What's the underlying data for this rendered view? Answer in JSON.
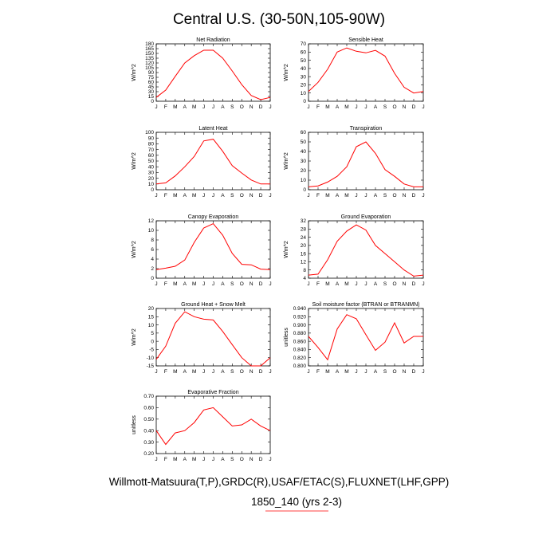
{
  "title": "Central U.S. (30-50N,105-90W)",
  "footer": {
    "line1": "Willmott-Matsuura(T,P),GRDC(R),USAF/ETAC(S),FLUXNET(LHF,GPP)",
    "line2": "1850_140 (yrs 2-3)",
    "line2_color": "#ff0000"
  },
  "line_color": "#ff0000",
  "chart_data": [
    {
      "type": "line",
      "title": "Net Radiation",
      "ylabel": "W/m^2",
      "categories": [
        "J",
        "F",
        "M",
        "A",
        "M",
        "J",
        "J",
        "A",
        "S",
        "O",
        "N",
        "D",
        "J"
      ],
      "ylim": [
        0,
        180
      ],
      "yticks": [
        "0",
        "15",
        "30",
        "45",
        "60",
        "75",
        "90",
        "105",
        "120",
        "135",
        "150",
        "165",
        "180"
      ],
      "values": [
        12,
        35,
        78,
        120,
        143,
        160,
        160,
        135,
        95,
        52,
        18,
        5,
        12
      ]
    },
    {
      "type": "line",
      "title": "Sensible Heat",
      "ylabel": "W/m^2",
      "categories": [
        "J",
        "F",
        "M",
        "A",
        "M",
        "J",
        "J",
        "A",
        "S",
        "O",
        "N",
        "D",
        "J"
      ],
      "ylim": [
        0,
        70
      ],
      "yticks": [
        "0",
        "10",
        "20",
        "30",
        "40",
        "50",
        "60",
        "70"
      ],
      "values": [
        12,
        23,
        39,
        60,
        65,
        61,
        59,
        62,
        55,
        34,
        17,
        10,
        12
      ]
    },
    {
      "type": "line",
      "title": "Latent Heat",
      "ylabel": "W/m^2",
      "categories": [
        "J",
        "F",
        "M",
        "A",
        "M",
        "J",
        "J",
        "A",
        "S",
        "O",
        "N",
        "D",
        "J"
      ],
      "ylim": [
        0,
        100
      ],
      "yticks": [
        "0",
        "10",
        "20",
        "30",
        "40",
        "50",
        "60",
        "70",
        "80",
        "90",
        "100"
      ],
      "values": [
        10,
        12,
        24,
        40,
        58,
        85,
        88,
        67,
        42,
        29,
        17,
        10,
        10
      ]
    },
    {
      "type": "line",
      "title": "Transpiration",
      "ylabel": "W/m^2",
      "categories": [
        "J",
        "F",
        "M",
        "A",
        "M",
        "J",
        "J",
        "A",
        "S",
        "O",
        "N",
        "D",
        "J"
      ],
      "ylim": [
        0,
        60
      ],
      "yticks": [
        "0",
        "10",
        "20",
        "30",
        "40",
        "50",
        "60"
      ],
      "values": [
        3,
        4,
        8,
        14,
        24,
        45,
        50,
        38,
        21,
        14,
        6,
        3,
        3
      ]
    },
    {
      "type": "line",
      "title": "Canopy Evaporation",
      "ylabel": "W/m^2",
      "categories": [
        "J",
        "F",
        "M",
        "A",
        "M",
        "J",
        "J",
        "A",
        "S",
        "O",
        "N",
        "D",
        "J"
      ],
      "ylim": [
        0,
        12
      ],
      "yticks": [
        "0",
        "2",
        "4",
        "6",
        "8",
        "10",
        "12"
      ],
      "values": [
        1.8,
        2.1,
        2.5,
        3.8,
        7.5,
        10.5,
        11.4,
        9.0,
        5.2,
        2.9,
        2.8,
        1.9,
        1.8
      ]
    },
    {
      "type": "line",
      "title": "Ground Evaporation",
      "ylabel": "W/m^2",
      "categories": [
        "J",
        "F",
        "M",
        "A",
        "M",
        "J",
        "J",
        "A",
        "S",
        "O",
        "N",
        "D",
        "J"
      ],
      "ylim": [
        4,
        32
      ],
      "yticks": [
        "4",
        "8",
        "12",
        "16",
        "20",
        "24",
        "28",
        "32"
      ],
      "values": [
        5.5,
        6,
        13,
        22,
        27,
        30,
        27.5,
        20,
        16,
        12,
        8,
        5,
        5.5
      ]
    },
    {
      "type": "line",
      "title": "Ground Heat + Snow Melt",
      "ylabel": "W/m^2",
      "categories": [
        "J",
        "F",
        "M",
        "A",
        "M",
        "J",
        "J",
        "A",
        "S",
        "O",
        "N",
        "D",
        "J"
      ],
      "ylim": [
        -15,
        20
      ],
      "yticks": [
        "-15",
        "-10",
        "-5",
        "0",
        "5",
        "10",
        "15",
        "20"
      ],
      "values": [
        -11,
        -3,
        11,
        18,
        15,
        13.5,
        13,
        6,
        -2,
        -10,
        -15,
        -15,
        -10
      ]
    },
    {
      "type": "line",
      "title": "Soil moisture factor (BTRAN or BTRANMN)",
      "ylabel": "unitless",
      "categories": [
        "J",
        "F",
        "M",
        "A",
        "M",
        "J",
        "J",
        "A",
        "S",
        "O",
        "N",
        "D",
        "J"
      ],
      "ylim": [
        0.8,
        0.94
      ],
      "yticks": [
        "0.800",
        "0.820",
        "0.840",
        "0.860",
        "0.880",
        "0.900",
        "0.920",
        "0.940"
      ],
      "values": [
        0.872,
        0.845,
        0.815,
        0.89,
        0.925,
        0.915,
        0.876,
        0.838,
        0.858,
        0.905,
        0.856,
        0.872,
        0.872
      ]
    },
    {
      "type": "line",
      "title": "Evaporative Fraction",
      "ylabel": "unitless",
      "categories": [
        "J",
        "F",
        "M",
        "A",
        "M",
        "J",
        "J",
        "A",
        "S",
        "O",
        "N",
        "D",
        "J"
      ],
      "ylim": [
        0.2,
        0.7
      ],
      "yticks": [
        "0.20",
        "0.30",
        "0.40",
        "0.50",
        "0.60",
        "0.70"
      ],
      "values": [
        0.4,
        0.28,
        0.38,
        0.4,
        0.47,
        0.58,
        0.6,
        0.52,
        0.44,
        0.45,
        0.5,
        0.44,
        0.4
      ]
    }
  ]
}
